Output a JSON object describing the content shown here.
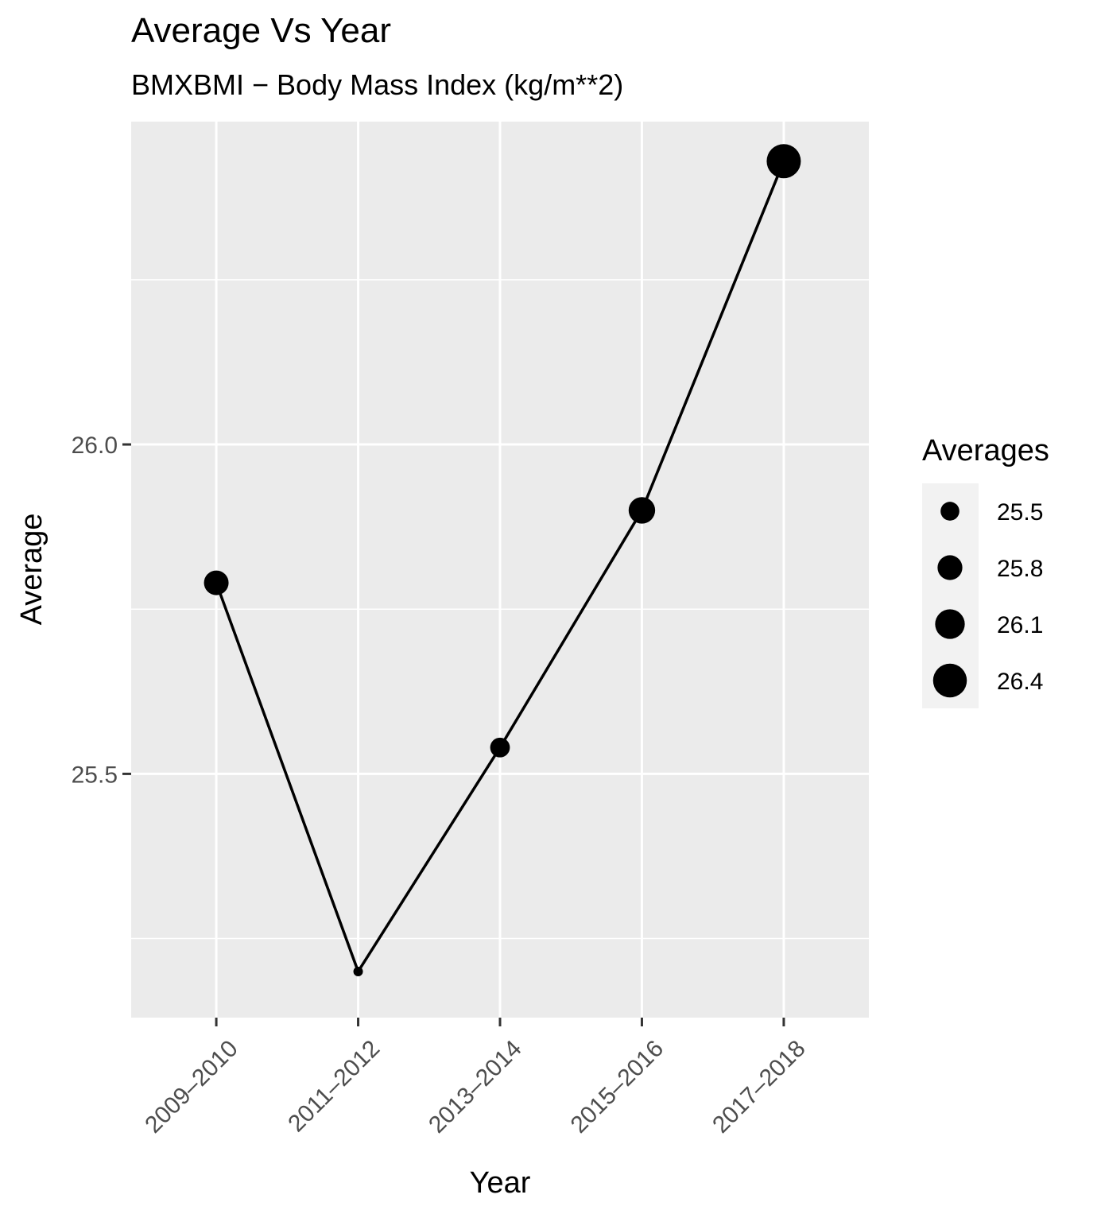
{
  "chart_data": {
    "type": "line",
    "title": "Average Vs Year",
    "subtitle": "BMXBMI − Body Mass Index (kg/m**2)",
    "xlabel": "Year",
    "ylabel": "Average",
    "categories": [
      "2009–2010",
      "2011–2012",
      "2013–2014",
      "2015–2016",
      "2017–2018"
    ],
    "values": [
      25.79,
      25.2,
      25.54,
      25.9,
      26.43
    ],
    "ylim": [
      25.13,
      26.49
    ],
    "yticks": [
      25.5,
      26.0
    ],
    "ytick_labels": [
      "25.5",
      "26.0"
    ],
    "minor_yticks": [
      25.25,
      25.75,
      26.25
    ],
    "size_range": [
      25.2,
      26.43
    ],
    "grid": true,
    "line_color": "#000000",
    "point_color": "#000000",
    "panel_color": "#ebebeb",
    "grid_color": "#ffffff",
    "legend": {
      "title": "Averages",
      "position": "right",
      "breaks": [
        25.5,
        25.8,
        26.1,
        26.4
      ],
      "labels": [
        "25.5",
        "25.8",
        "26.1",
        "26.4"
      ]
    }
  }
}
